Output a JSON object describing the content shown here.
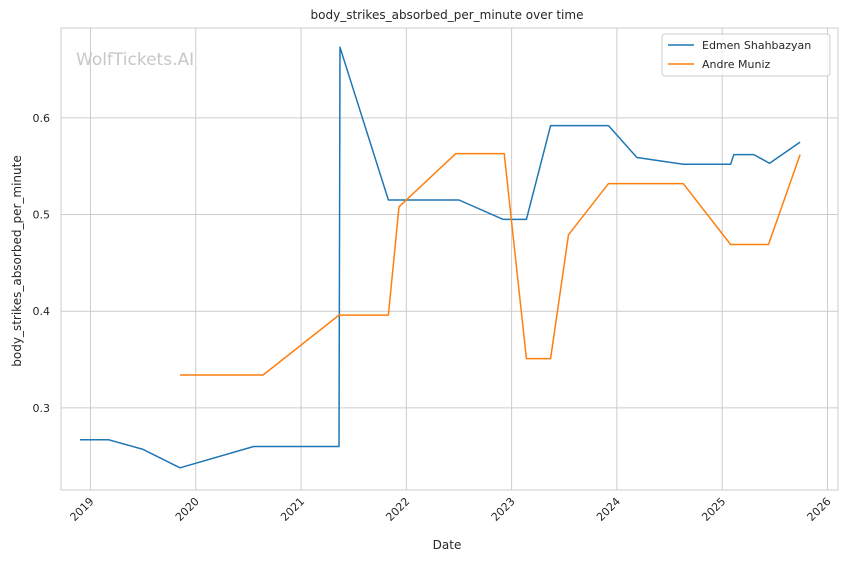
{
  "chart_data": {
    "type": "line",
    "title": "body_strikes_absorbed_per_minute over time",
    "xlabel": "Date",
    "ylabel": "body_strikes_absorbed_per_minute",
    "watermark": "WolfTickets.AI",
    "grid": true,
    "legend_position": "top-right",
    "xlim": [
      2018.72,
      2026.1
    ],
    "ylim": [
      0.215,
      0.693
    ],
    "x_ticks": [
      2019,
      2020,
      2021,
      2022,
      2023,
      2024,
      2025,
      2026
    ],
    "x_tick_labels": [
      "2019",
      "2020",
      "2021",
      "2022",
      "2023",
      "2024",
      "2025",
      "2026"
    ],
    "y_ticks": [
      0.3,
      0.4,
      0.5,
      0.6
    ],
    "y_tick_labels": [
      "0.3",
      "0.4",
      "0.5",
      "0.6"
    ],
    "series": [
      {
        "name": "Edmen Shahbazyan",
        "color": "#1f77b4",
        "x": [
          2018.9,
          2019.17,
          2019.5,
          2019.85,
          2020.55,
          2021.36,
          2021.37,
          2021.83,
          2022.5,
          2022.92,
          2023.14,
          2023.37,
          2023.92,
          2024.19,
          2024.63,
          2025.08,
          2025.11,
          2025.3,
          2025.45,
          2025.74
        ],
        "y": [
          0.267,
          0.267,
          0.257,
          0.238,
          0.26,
          0.26,
          0.673,
          0.515,
          0.515,
          0.495,
          0.495,
          0.592,
          0.592,
          0.559,
          0.552,
          0.552,
          0.562,
          0.562,
          0.553,
          0.575
        ]
      },
      {
        "name": "Andre Muniz",
        "color": "#ff7f0e",
        "x": [
          2019.85,
          2020.64,
          2021.36,
          2021.83,
          2021.93,
          2022.47,
          2022.93,
          2023.14,
          2023.37,
          2023.54,
          2023.92,
          2024.63,
          2025.08,
          2025.44,
          2025.74
        ],
        "y": [
          0.334,
          0.334,
          0.396,
          0.396,
          0.508,
          0.563,
          0.563,
          0.351,
          0.351,
          0.479,
          0.532,
          0.532,
          0.469,
          0.469,
          0.562
        ]
      }
    ]
  }
}
